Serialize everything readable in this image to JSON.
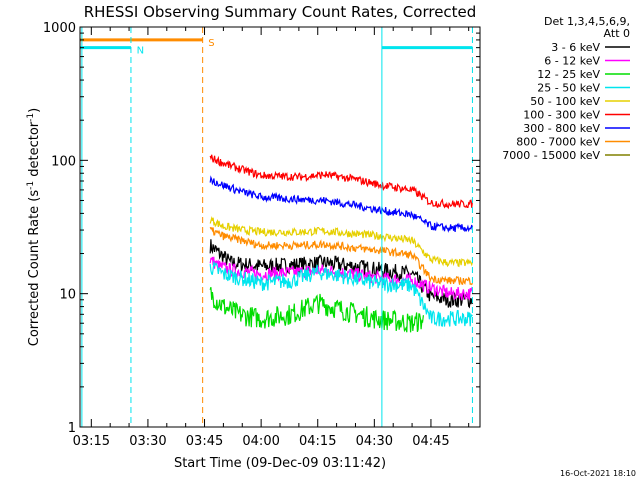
{
  "chart_data": {
    "type": "line",
    "title": "RHESSI Observing Summary Count Rates, Corrected",
    "xlabel": "Start Time (09-Dec-09 03:11:42)",
    "ylabel_main": "Corrected Count Rate (s",
    "ylabel_sup1": "-1",
    "ylabel_mid": " detector",
    "ylabel_sup2": "-1",
    "ylabel_end": ")",
    "y_scale": "log",
    "ylim": [
      1,
      1000
    ],
    "xlim_min": [
      192,
      298
    ],
    "x_tick_labels": [
      "03:15",
      "03:30",
      "03:45",
      "04:00",
      "04:15",
      "04:30",
      "04:45"
    ],
    "x_tick_min": [
      195,
      210,
      225,
      240,
      255,
      270,
      285
    ],
    "y_tick_labels": [
      "1",
      "10",
      "100",
      "1000"
    ],
    "y_tick_values": [
      1,
      10,
      100,
      1000
    ],
    "legend_header": [
      "Det 1,3,4,5,6,9,",
      "Att 0"
    ],
    "footer_timestamp": "16-Oct-2021 18:10",
    "flags": [
      {
        "label": "N",
        "color": "#00e5ee",
        "level": 700,
        "segments": [
          [
            192,
            205.5
          ],
          [
            272,
            296
          ]
        ],
        "label_min": 207
      },
      {
        "label": "S",
        "color": "#ff8c00",
        "level": 800,
        "segments": [
          [
            192,
            224.5
          ]
        ],
        "label_min": 226
      }
    ],
    "vlines": [
      {
        "min": 192.5,
        "color": "#00e5ee",
        "dashed": false
      },
      {
        "min": 205.5,
        "color": "#00e5ee",
        "dashed": true
      },
      {
        "min": 224.5,
        "color": "#ff8c00",
        "dashed": true
      },
      {
        "min": 272,
        "color": "#00e5ee",
        "dashed": false
      },
      {
        "min": 296,
        "color": "#00e5ee",
        "dashed": true
      }
    ],
    "series": [
      {
        "name": "3 - 6 keV",
        "color": "#000000",
        "noise": 0.06,
        "points": [
          [
            226.5,
            23
          ],
          [
            229,
            20
          ],
          [
            232,
            17
          ],
          [
            240,
            16
          ],
          [
            250,
            16.5
          ],
          [
            257,
            17
          ],
          [
            265,
            16
          ],
          [
            272,
            15
          ],
          [
            280,
            14
          ],
          [
            285,
            9.5
          ],
          [
            290,
            9
          ],
          [
            296,
            9
          ]
        ]
      },
      {
        "name": "6 - 12 keV",
        "color": "#ff00ff",
        "noise": 0.05,
        "points": [
          [
            226.5,
            18
          ],
          [
            229,
            16
          ],
          [
            232,
            15
          ],
          [
            240,
            14
          ],
          [
            250,
            14.5
          ],
          [
            257,
            15
          ],
          [
            265,
            14
          ],
          [
            272,
            13
          ],
          [
            280,
            12.5
          ],
          [
            285,
            11
          ],
          [
            290,
            10
          ],
          [
            296,
            10
          ]
        ]
      },
      {
        "name": "12 - 25 keV",
        "color": "#00dd00",
        "noise": 0.08,
        "points": [
          [
            226.5,
            10
          ],
          [
            230,
            8
          ],
          [
            234,
            7
          ],
          [
            240,
            6.5
          ],
          [
            248,
            7
          ],
          [
            255,
            8.5
          ],
          [
            262,
            7.5
          ],
          [
            270,
            6.5
          ],
          [
            280,
            6
          ],
          [
            283,
            6.3
          ]
        ]
      },
      {
        "name": "25 - 50 keV",
        "color": "#00e5ee",
        "noise": 0.06,
        "points": [
          [
            226.5,
            16
          ],
          [
            230,
            14
          ],
          [
            235,
            13
          ],
          [
            240,
            12
          ],
          [
            248,
            12.5
          ],
          [
            255,
            14.5
          ],
          [
            262,
            13.5
          ],
          [
            270,
            12
          ],
          [
            280,
            11.5
          ],
          [
            285,
            6.5
          ],
          [
            290,
            6.5
          ],
          [
            296,
            6.5
          ]
        ]
      },
      {
        "name": "50 - 100 keV",
        "color": "#e6d000",
        "noise": 0.03,
        "points": [
          [
            226.5,
            36
          ],
          [
            230,
            32
          ],
          [
            235,
            30
          ],
          [
            240,
            29
          ],
          [
            250,
            29
          ],
          [
            257,
            29.5
          ],
          [
            265,
            28
          ],
          [
            272,
            27
          ],
          [
            280,
            25
          ],
          [
            285,
            18
          ],
          [
            290,
            17
          ],
          [
            296,
            17
          ]
        ]
      },
      {
        "name": "100 - 300 keV",
        "color": "#ff0000",
        "noise": 0.03,
        "points": [
          [
            226.5,
            105
          ],
          [
            230,
            95
          ],
          [
            235,
            85
          ],
          [
            240,
            77
          ],
          [
            250,
            75
          ],
          [
            257,
            78
          ],
          [
            265,
            72
          ],
          [
            272,
            65
          ],
          [
            280,
            60
          ],
          [
            285,
            48
          ],
          [
            290,
            47
          ],
          [
            296,
            47
          ]
        ]
      },
      {
        "name": "300 - 800 keV",
        "color": "#0000ff",
        "noise": 0.03,
        "points": [
          [
            226.5,
            72
          ],
          [
            230,
            65
          ],
          [
            235,
            58
          ],
          [
            240,
            53
          ],
          [
            250,
            51
          ],
          [
            257,
            50
          ],
          [
            265,
            46
          ],
          [
            272,
            42
          ],
          [
            280,
            39
          ],
          [
            285,
            32
          ],
          [
            290,
            31
          ],
          [
            296,
            31
          ]
        ]
      },
      {
        "name": "800 - 7000 keV",
        "color": "#ff8c00",
        "noise": 0.03,
        "points": [
          [
            226.5,
            30
          ],
          [
            230,
            27
          ],
          [
            235,
            25
          ],
          [
            240,
            23
          ],
          [
            250,
            23
          ],
          [
            257,
            23.5
          ],
          [
            265,
            22
          ],
          [
            272,
            21
          ],
          [
            280,
            19.5
          ],
          [
            285,
            13
          ],
          [
            290,
            12.5
          ],
          [
            296,
            12.5
          ]
        ]
      },
      {
        "name": "7000 - 15000 keV",
        "color": "#808000",
        "noise": 0.0,
        "points": []
      }
    ]
  }
}
